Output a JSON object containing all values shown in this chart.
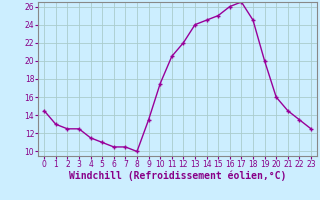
{
  "x": [
    0,
    1,
    2,
    3,
    4,
    5,
    6,
    7,
    8,
    9,
    10,
    11,
    12,
    13,
    14,
    15,
    16,
    17,
    18,
    19,
    20,
    21,
    22,
    23
  ],
  "y": [
    14.5,
    13.0,
    12.5,
    12.5,
    11.5,
    11.0,
    10.5,
    10.5,
    10.0,
    13.5,
    17.5,
    20.5,
    22.0,
    24.0,
    24.5,
    25.0,
    26.0,
    26.5,
    24.5,
    20.0,
    16.0,
    14.5,
    13.5,
    12.5
  ],
  "line_color": "#990099",
  "marker": "+",
  "marker_size": 3,
  "xlabel": "Windchill (Refroidissement éolien,°C)",
  "xlim_min": -0.5,
  "xlim_max": 23.5,
  "ylim_min": 9.5,
  "ylim_max": 26.5,
  "yticks": [
    10,
    12,
    14,
    16,
    18,
    20,
    22,
    24,
    26
  ],
  "xticks": [
    0,
    1,
    2,
    3,
    4,
    5,
    6,
    7,
    8,
    9,
    10,
    11,
    12,
    13,
    14,
    15,
    16,
    17,
    18,
    19,
    20,
    21,
    22,
    23
  ],
  "background_color": "#cceeff",
  "grid_color": "#aacccc",
  "tick_color": "#880088",
  "label_color": "#880088",
  "spine_color": "#888888",
  "tick_fontsize": 5.5,
  "xlabel_fontsize": 7.0,
  "linewidth": 1.0,
  "markeredgewidth": 1.0
}
